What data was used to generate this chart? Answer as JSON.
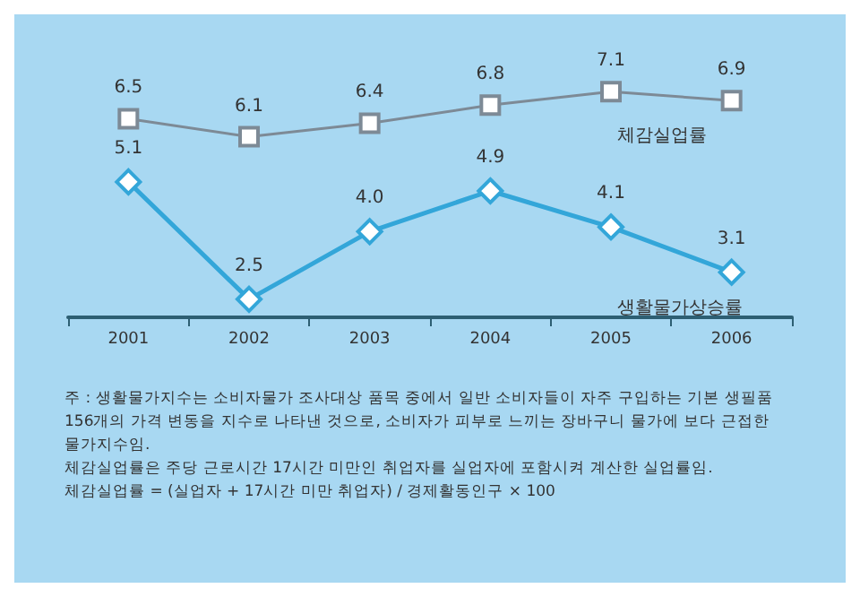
{
  "chart_data": {
    "type": "line",
    "categories": [
      "2001",
      "2002",
      "2003",
      "2004",
      "2005",
      "2006"
    ],
    "series": [
      {
        "name": "체감실업률",
        "color": "#7d8a96",
        "marker": "square",
        "values": [
          6.5,
          6.1,
          6.4,
          6.8,
          7.1,
          6.9
        ],
        "value_labels": [
          "6.5",
          "6.1",
          "6.4",
          "6.8",
          "7.1",
          "6.9"
        ]
      },
      {
        "name": "생활물가상승률",
        "color": "#33a6d9",
        "marker": "diamond",
        "values": [
          5.1,
          2.5,
          4.0,
          4.9,
          4.1,
          3.1
        ],
        "value_labels": [
          "5.1",
          "2.5",
          "4.0",
          "4.9",
          "4.1",
          "3.1"
        ]
      }
    ],
    "grid": false,
    "legend": false,
    "tick_labels": "x",
    "annotations": [
      "주 : 생활물가지수는 소비자물가 조사대상 품목 중에서 일반 소비자들이 자주 구입하는 기본 생필품 156개의 가격 변동을 지수로 나타낸 것으로, 소비자가 피부로 느끼는 장바구니 물가에 보다 근접한 물가지수임.\n체감실업률은 주당 근로시간 17시간 미만인 취업자를 실업자에 포함시켜 계산한 실업률임.\n체감실업률 = (실업자 + 17시간 미만 취업자) / 경제활동인구 × 100"
    ]
  }
}
